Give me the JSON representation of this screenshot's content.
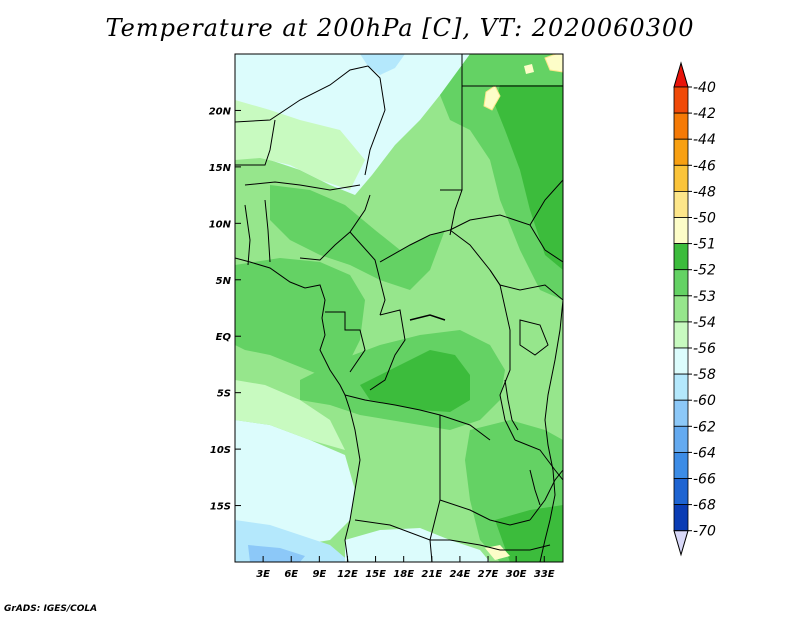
{
  "title": "Temperature at 200hPa [C], VT: 2020060300",
  "credit": "GrADS: IGES/COLA",
  "map": {
    "lon_range": [
      0,
      35
    ],
    "lat_range": [
      -20,
      25
    ],
    "lon_ticks": [
      "3E",
      "6E",
      "9E",
      "12E",
      "15E",
      "18E",
      "21E",
      "24E",
      "27E",
      "30E",
      "33E"
    ],
    "lon_tick_values": [
      3,
      6,
      9,
      12,
      15,
      18,
      21,
      24,
      27,
      30,
      33
    ],
    "lat_ticks": [
      "20N",
      "15N",
      "10N",
      "5N",
      "EQ",
      "5S",
      "10S",
      "15S"
    ],
    "lat_tick_values": [
      20,
      15,
      10,
      5,
      0,
      -5,
      -10,
      -15
    ]
  },
  "colorbar": {
    "levels": [
      "-40",
      "-42",
      "-44",
      "-46",
      "-48",
      "-50",
      "-51",
      "-52",
      "-53",
      "-54",
      "-56",
      "-58",
      "-60",
      "-62",
      "-64",
      "-66",
      "-68",
      "-70"
    ],
    "colors": [
      "#e8140a",
      "#f04a08",
      "#f57a06",
      "#f8a012",
      "#fbc43a",
      "#fde68a",
      "#fdfdc8",
      "#3cbc3c",
      "#64d264",
      "#96e68c",
      "#c8fac0",
      "#dcfcfc",
      "#b4e8fc",
      "#8cc8f8",
      "#64aaf0",
      "#3c8ce6",
      "#1e64d2",
      "#0a3cb4",
      "#0a1478"
    ],
    "top_arrow_color": "#e8140a",
    "bottom_arrow_color": "#d8d8f8"
  },
  "colors": {
    "green_dark": "#3cbc3c",
    "green_mid": "#64d264",
    "green_light": "#96e68c",
    "green_pale": "#c8fac0",
    "cyan_pale": "#dcfcfc",
    "blue_light": "#b4e8fc",
    "blue_mid": "#8cc8f8",
    "yellow_pale": "#fdfdc8"
  }
}
